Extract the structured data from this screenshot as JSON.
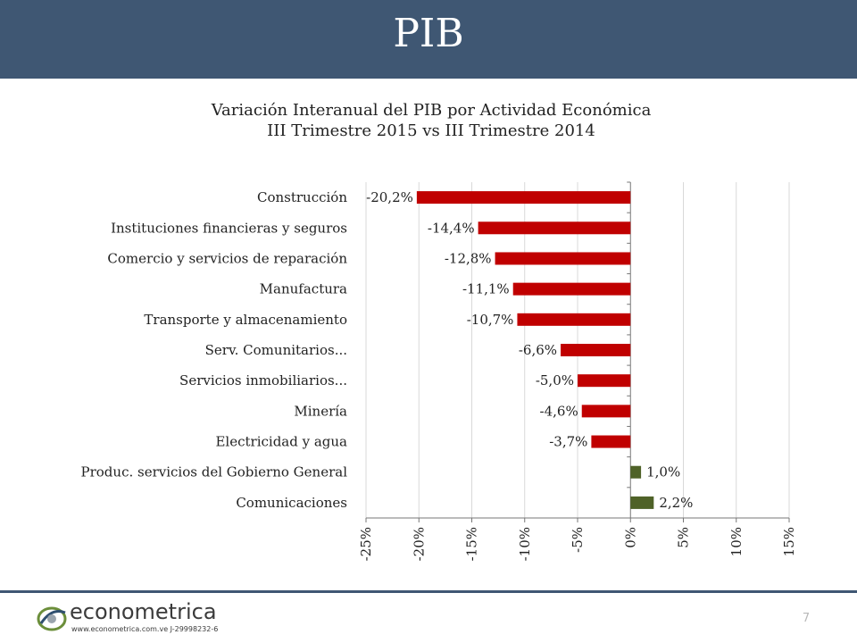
{
  "header": {
    "title": "PIB"
  },
  "chart_title": {
    "line1": "Variación Interanual del PIB por Actividad Económica",
    "line2": "III Trimestre 2015 vs III Trimestre 2014"
  },
  "chart_data": {
    "type": "bar",
    "orientation": "horizontal",
    "title": "Variación Interanual del PIB por Actividad Económica — III Trimestre 2015 vs III Trimestre 2014",
    "categories": [
      "Construcción",
      "Instituciones financieras y seguros",
      "Comercio y servicios de reparación",
      "Manufactura",
      "Transporte y almacenamiento",
      "Serv. Comunitarios...",
      "Servicios inmobiliarios...",
      "Minería",
      "Electricidad y agua",
      "Produc. servicios del Gobierno General",
      "Comunicaciones"
    ],
    "values": [
      -20.2,
      -14.4,
      -12.8,
      -11.1,
      -10.7,
      -6.6,
      -5.0,
      -4.6,
      -3.7,
      1.0,
      2.2
    ],
    "data_labels": [
      "-20,2%",
      "-14,4%",
      "-12,8%",
      "-11,1%",
      "-10,7%",
      "-6,6%",
      "-5,0%",
      "-4,6%",
      "-3,7%",
      "1,0%",
      "2,2%"
    ],
    "xlim": [
      -25,
      15
    ],
    "x_ticks": [
      -25,
      -20,
      -15,
      -10,
      -5,
      0,
      5,
      10,
      15
    ],
    "x_tick_labels": [
      "-25%",
      "-20%",
      "-15%",
      "-10%",
      "-5%",
      "0%",
      "5%",
      "10%",
      "15%"
    ],
    "grid": "vertical",
    "legend": "none",
    "colors": {
      "negative": "#c00000",
      "positive": "#4f6228",
      "grid": "#d9d9d9",
      "axis": "#777777"
    }
  },
  "footer": {
    "logo_text": "econometrica",
    "logo_url": "www.econometrica.com.ve  J-29998232-6",
    "page_number": "7"
  }
}
